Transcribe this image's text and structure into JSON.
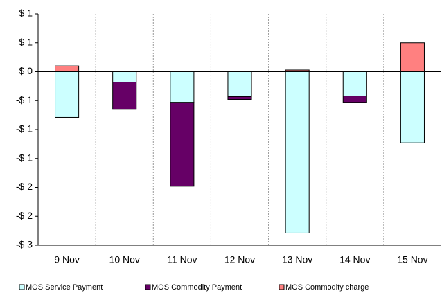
{
  "chart_data": {
    "type": "stacked-bar",
    "categories": [
      "9 Nov",
      "10 Nov",
      "11 Nov",
      "12 Nov",
      "13 Nov",
      "14 Nov",
      "15 Nov"
    ],
    "series": [
      {
        "name": "MOS Service Payment",
        "color": "#ccffff",
        "values": [
          -0.79,
          -0.18,
          -0.53,
          -0.43,
          -2.79,
          -0.42,
          -1.23
        ]
      },
      {
        "name": "MOS Commodity Payment",
        "color": "#660066",
        "values": [
          0,
          -0.47,
          -1.45,
          -0.05,
          0,
          -0.11,
          0
        ]
      },
      {
        "name": "MOS Commodity charge",
        "color": "#ff8080",
        "values": [
          0.1,
          0,
          0,
          0,
          0.03,
          0,
          0.5
        ]
      }
    ],
    "ylim": [
      -3,
      1
    ],
    "yticks": [
      {
        "value": 1,
        "label": "$ 1"
      },
      {
        "value": 0.5,
        "label": "$ 1"
      },
      {
        "value": 0,
        "label": "$ 0"
      },
      {
        "value": -0.5,
        "label": "-$ 1"
      },
      {
        "value": -1,
        "label": "-$ 1"
      },
      {
        "value": -1.5,
        "label": "-$ 1"
      },
      {
        "value": -2,
        "label": "-$ 2"
      },
      {
        "value": -2.5,
        "label": "-$ 2"
      },
      {
        "value": -3,
        "label": "-$ 3"
      }
    ],
    "grid": "vertical-dashed"
  }
}
